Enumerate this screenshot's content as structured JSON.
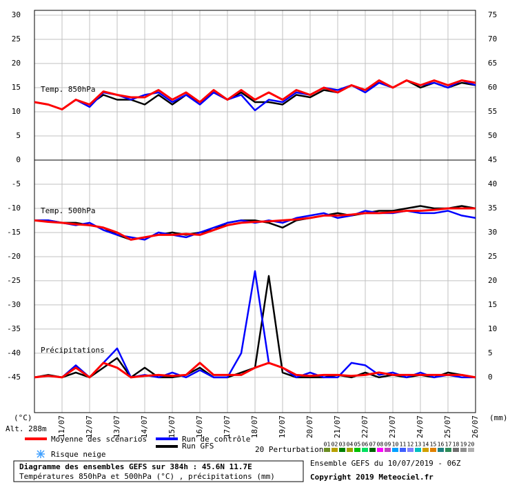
{
  "chart_data": {
    "type": "line",
    "panels": [
      "Temp. 850hPa",
      "Temp. 500hPa",
      "Précipitations"
    ],
    "y_unit": "(°C)",
    "y2_unit": "(mm)",
    "altitude": "Alt. 288m",
    "x": [
      0,
      12,
      24,
      36,
      48,
      60,
      72,
      84,
      96,
      108,
      120,
      132,
      144,
      156,
      168,
      180,
      192,
      204,
      216,
      228,
      240,
      252,
      264,
      276,
      288,
      300,
      312,
      324,
      336,
      348,
      360,
      372,
      384
    ],
    "xlim": [
      0,
      384
    ],
    "xticks": [
      {
        "value": 24,
        "label": "11/07"
      },
      {
        "value": 48,
        "label": "12/07"
      },
      {
        "value": 72,
        "label": "13/07"
      },
      {
        "value": 96,
        "label": "14/07"
      },
      {
        "value": 120,
        "label": "15/07"
      },
      {
        "value": 144,
        "label": "16/07"
      },
      {
        "value": 168,
        "label": "17/07"
      },
      {
        "value": 192,
        "label": "18/07"
      },
      {
        "value": 216,
        "label": "19/07"
      },
      {
        "value": 240,
        "label": "20/07"
      },
      {
        "value": 264,
        "label": "21/07"
      },
      {
        "value": 288,
        "label": "22/07"
      },
      {
        "value": 312,
        "label": "23/07"
      },
      {
        "value": 336,
        "label": "24/07"
      },
      {
        "value": 360,
        "label": "25/07"
      },
      {
        "value": 384,
        "label": "26/07"
      }
    ],
    "ylim": [
      -52.3,
      31
    ],
    "yticks": [
      30,
      25,
      20,
      15,
      10,
      5,
      0,
      -5,
      -10,
      -15,
      -20,
      -25,
      -30,
      -35,
      -40,
      -45
    ],
    "y2lim": [
      -7.3,
      76
    ],
    "y2ticks": [
      75,
      70,
      65,
      60,
      55,
      50,
      45,
      40,
      35,
      30,
      25,
      20,
      15,
      10,
      5,
      0
    ],
    "grid": true,
    "series": [
      {
        "name": "Moyenne des scénarios",
        "color": "#ff0000",
        "temp850": [
          12,
          11.5,
          10.5,
          12.5,
          11.5,
          14.2,
          13.5,
          13,
          13,
          14.5,
          12.5,
          14,
          12,
          14.5,
          12.5,
          14.5,
          12.5,
          14,
          12.5,
          14.5,
          13.5,
          15,
          14,
          15.5,
          14.5,
          16.5,
          15,
          16.5,
          15.5,
          16.5,
          15.5,
          16.5,
          16
        ],
        "temp500": [
          -12.5,
          -12.8,
          -13,
          -13.3,
          -13.5,
          -14,
          -15,
          -16.5,
          -16,
          -15.5,
          -15.5,
          -15.3,
          -15.5,
          -14.5,
          -13.5,
          -13,
          -12.8,
          -12.7,
          -12.5,
          -12.3,
          -12,
          -11.5,
          -11.5,
          -11.3,
          -11,
          -11,
          -10.8,
          -10.5,
          -10.5,
          -10.3,
          -10,
          -10,
          -10
        ],
        "precip": [
          0,
          0.3,
          0,
          2,
          0,
          3,
          2,
          0,
          0.3,
          0.5,
          0.3,
          0.5,
          3,
          0.5,
          0.5,
          0.5,
          2,
          3,
          2,
          0.5,
          0.3,
          0.5,
          0.5,
          0.3,
          0.5,
          1,
          0.5,
          0.5,
          0.5,
          0.5,
          0.5,
          0.5,
          0
        ]
      },
      {
        "name": "Run de contrôle",
        "color": "#0000ff",
        "temp850": [
          12,
          11.5,
          10.5,
          12.5,
          11,
          14,
          13.5,
          12.5,
          13.5,
          14,
          12,
          13.5,
          11.5,
          14,
          12.5,
          13.5,
          10.3,
          12.5,
          12,
          14,
          13.5,
          15,
          14.5,
          15.5,
          14,
          16,
          15,
          16.5,
          15.5,
          16,
          15,
          16.5,
          15.5
        ],
        "temp500": [
          -12.5,
          -12.5,
          -13,
          -13.5,
          -13,
          -14.5,
          -15.5,
          -16,
          -16.5,
          -15,
          -15.5,
          -16,
          -15,
          -14,
          -13,
          -12.5,
          -13,
          -12.5,
          -13,
          -12,
          -11.5,
          -11,
          -12,
          -11.5,
          -10.5,
          -11,
          -11,
          -10.5,
          -11,
          -11,
          -10.5,
          -11.5,
          -12
        ],
        "precip": [
          0,
          0.3,
          0,
          2.5,
          0,
          3,
          6,
          0,
          0.5,
          0,
          1,
          0,
          1.5,
          0,
          0,
          5,
          22,
          3,
          2,
          0,
          1,
          0,
          0,
          3,
          2.5,
          0.5,
          1,
          0,
          1,
          0,
          0.5,
          0,
          0
        ]
      },
      {
        "name": "Run GFS",
        "color": "#000000",
        "temp850": [
          12,
          11.5,
          10.5,
          12.5,
          11.5,
          13.5,
          12.5,
          12.5,
          11.5,
          13.5,
          11.5,
          13.5,
          12,
          14,
          12.5,
          14,
          12,
          12,
          11.5,
          13.5,
          13,
          14.5,
          14,
          15.5,
          14.5,
          16,
          15,
          16.5,
          15,
          16,
          15,
          16,
          15.5
        ],
        "temp500": [
          -12.5,
          -12.5,
          -13,
          -13,
          -13.5,
          -14,
          -15.5,
          -16.5,
          -16,
          -15.5,
          -15,
          -15.5,
          -15,
          -14.5,
          -13,
          -12.5,
          -12.5,
          -13,
          -14,
          -12.5,
          -12,
          -11.5,
          -11,
          -11.5,
          -11,
          -10.5,
          -10.5,
          -10,
          -9.5,
          -10,
          -10,
          -9.5,
          -10
        ],
        "precip": [
          0,
          0.5,
          0,
          1,
          0,
          2,
          4,
          0,
          2,
          0,
          0,
          0.5,
          2,
          0,
          0,
          1,
          2,
          21,
          1,
          0,
          0,
          0,
          0.5,
          0,
          1,
          0,
          0.5,
          0,
          0.5,
          0,
          1,
          0.5,
          0
        ]
      }
    ],
    "snow_risk": "Risque neige",
    "perturbations": {
      "label": "20 Perturbations",
      "items": [
        {
          "name": "01",
          "color": "#6b8e23"
        },
        {
          "name": "02",
          "color": "#b8a000"
        },
        {
          "name": "03",
          "color": "#008000"
        },
        {
          "name": "04",
          "color": "#a0a000"
        },
        {
          "name": "05",
          "color": "#00c000"
        },
        {
          "name": "06",
          "color": "#00e060"
        },
        {
          "name": "07",
          "color": "#006400"
        },
        {
          "name": "08",
          "color": "#ff00ff"
        },
        {
          "name": "09",
          "color": "#c040c0"
        },
        {
          "name": "10",
          "color": "#00a0ff"
        },
        {
          "name": "11",
          "color": "#4060ff"
        },
        {
          "name": "12",
          "color": "#8080ff"
        },
        {
          "name": "13",
          "color": "#00c0c0"
        },
        {
          "name": "14",
          "color": "#d0a000"
        },
        {
          "name": "15",
          "color": "#e08000"
        },
        {
          "name": "16",
          "color": "#208080"
        },
        {
          "name": "17",
          "color": "#2e8b57"
        },
        {
          "name": "18",
          "color": "#707070"
        },
        {
          "name": "19",
          "color": "#909090"
        },
        {
          "name": "20",
          "color": "#b0b0b0"
        }
      ]
    },
    "footer": {
      "title": "Diagramme des ensembles GEFS sur 384h : 45.6N 11.7E",
      "subtitle": "Températures 850hPa et 500hPa (°C) , précipitations (mm)",
      "run": "Ensemble GEFS du 10/07/2019 - 06Z",
      "copyright": "Copyright 2019 Meteociel.fr"
    }
  }
}
